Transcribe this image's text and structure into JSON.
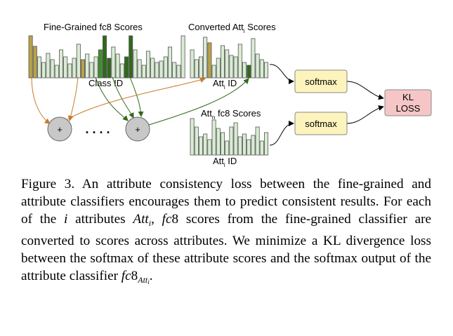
{
  "diagram": {
    "fine_title": "Fine-Grained fc8 Scores",
    "fine_xlabel": "Class ID",
    "conv_title_pre": "Converted Att",
    "conv_title_sub": "i",
    "conv_title_post": " Scores",
    "conv_xlabel_pre": "Att",
    "conv_xlabel_sub": "i",
    "conv_xlabel_post": " ID",
    "attn_title_pre": "Att",
    "attn_title_sub": "n",
    "attn_title_post": " fc8 Scores",
    "attn_xlabel_pre": "Att",
    "attn_xlabel_sub": "i",
    "attn_xlabel_post": " ID",
    "plus": "+",
    "dots": ". . . .",
    "softmax_top": "softmax",
    "softmax_bottom": "softmax",
    "kl_line1": "KL",
    "kl_line2": "LOSS",
    "colors": {
      "bar_default": "#d9ecd4",
      "bar_olive": "#b8a24a",
      "bar_dark_green": "#2f6a1a",
      "bar_mid_green": "#3f8f2a",
      "arrow_orange": "#c87a2a",
      "arrow_green": "#2f6a1a",
      "softmax_fill": "#fdf3bd",
      "kl_fill": "#f6c6c6",
      "sum_fill": "#c8c8c8"
    },
    "icons": [
      "plus-circle-icon"
    ]
  },
  "caption": {
    "p1": "Figure 3. An attribute consistency loss between the fine-grained and attribute classifiers encourages them to predict consistent results. For each of the ",
    "m1": "i",
    "p2": " attributes ",
    "m2": "Att",
    "m2sub": "i",
    "p3": ", ",
    "m3": "fc",
    "p4": "8 scores from the fine-grained classifier are converted to scores across attributes. We minimize a KL divergence loss between the softmax of these attribute scores and the softmax output of the attribute classifier ",
    "m4": "fc",
    "p5": "8",
    "m5sub": "Att",
    "m5subsub": "i",
    "p6": "."
  }
}
